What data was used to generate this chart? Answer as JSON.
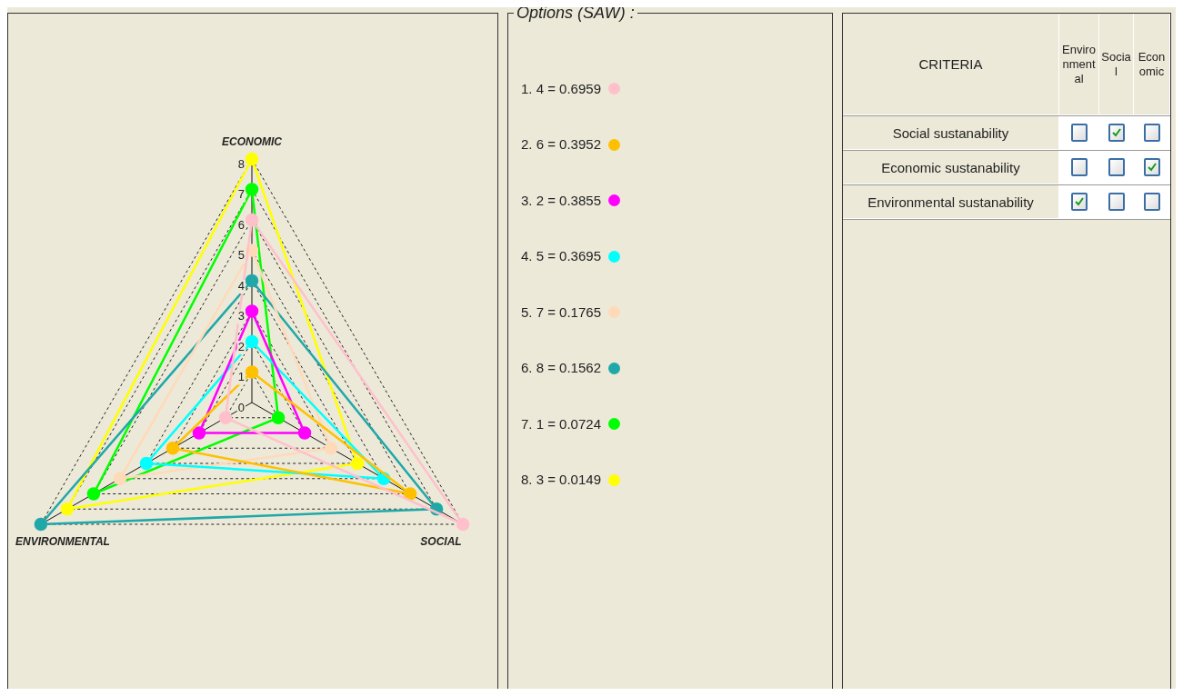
{
  "chart_data": {
    "type": "radar",
    "legend_title": "Options (SAW) :",
    "legend": "right",
    "grid": true,
    "marker": "circle",
    "categories": [
      "ECONOMIC",
      "SOCIAL",
      "ENVIRONMENTAL"
    ],
    "ylim": [
      0,
      8
    ],
    "yticks": [
      0,
      1,
      2,
      3,
      4,
      5,
      6,
      7,
      8
    ],
    "series": [
      {
        "name": "1. 4 = 0.6959",
        "color": "#ffc0cb",
        "values": [
          6,
          8,
          1
        ]
      },
      {
        "name": "2. 6 = 0.3952",
        "color": "#ffc000",
        "values": [
          1,
          6,
          3
        ]
      },
      {
        "name": "3. 2 = 0.3855",
        "color": "#ff00ff",
        "values": [
          3,
          2,
          2
        ]
      },
      {
        "name": "4. 5 = 0.3695",
        "color": "#00ffff",
        "values": [
          2,
          5,
          4
        ]
      },
      {
        "name": "5. 7 = 0.1765",
        "color": "#ffdab9",
        "values": [
          5,
          3,
          5
        ]
      },
      {
        "name": "6. 8 = 0.1562",
        "color": "#20a8a8",
        "values": [
          4,
          7,
          8
        ]
      },
      {
        "name": "7. 1 = 0.0724",
        "color": "#00ff00",
        "values": [
          7,
          1,
          6
        ]
      },
      {
        "name": "8. 3 = 0.0149",
        "color": "#ffff00",
        "values": [
          8,
          4,
          7
        ]
      }
    ],
    "annotations": [
      "CRITERIA",
      "Environmental",
      "Social",
      "Economic",
      "Social sustanability",
      "Economic sustanability",
      "Environmental sustanability"
    ]
  }
}
